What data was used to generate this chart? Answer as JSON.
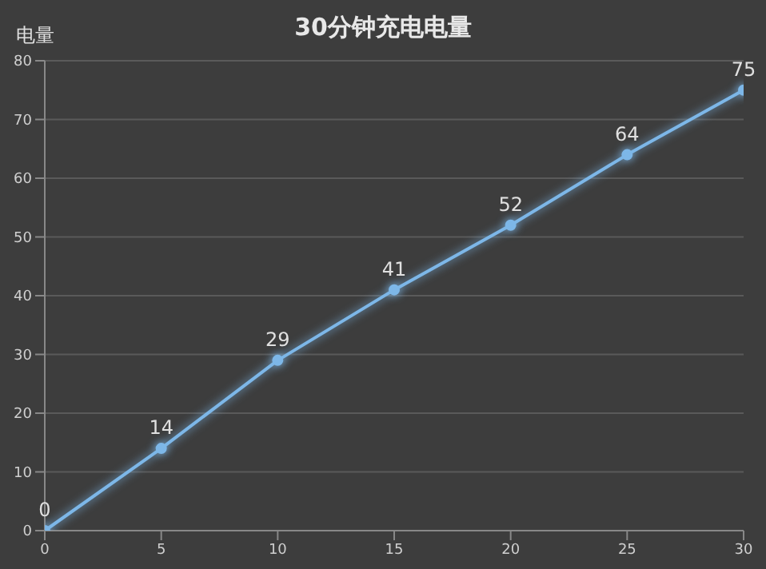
{
  "chart_data": {
    "type": "line",
    "title": "30分钟充电电量",
    "ylabel": "电量",
    "x": [
      0,
      5,
      10,
      15,
      20,
      25,
      30
    ],
    "series": [
      {
        "color": "#7db7e8",
        "values": [
          0,
          14,
          29,
          41,
          52,
          64,
          75
        ]
      }
    ],
    "xlim": [
      0,
      30
    ],
    "xticks": [
      0,
      5,
      10,
      15,
      20,
      25,
      30
    ],
    "ylim": [
      0,
      80
    ],
    "yticks": [
      0,
      10,
      20,
      30,
      40,
      50,
      60,
      70,
      80
    ],
    "grid": "y",
    "marker": "circle",
    "line_style": "solid",
    "data_labels": true,
    "legend": false
  }
}
